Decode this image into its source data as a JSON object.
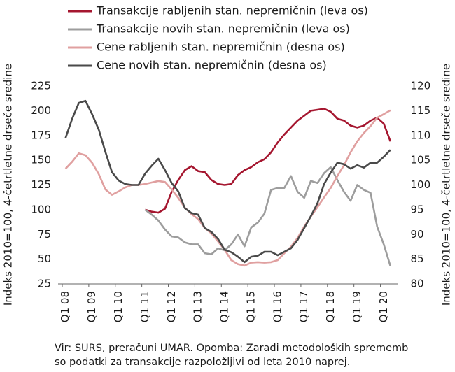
{
  "chart_data": {
    "type": "line",
    "categories": [
      "Q1 08",
      null,
      null,
      null,
      "Q1 09",
      null,
      null,
      null,
      "Q1 10",
      null,
      null,
      null,
      "Q1 11",
      null,
      null,
      null,
      "Q1 12",
      null,
      null,
      null,
      "Q1 13",
      null,
      null,
      null,
      "Q1 14",
      null,
      null,
      null,
      "Q1 15",
      null,
      null,
      null,
      "Q1 16",
      null,
      null,
      null,
      "Q1 17",
      null,
      null,
      null,
      "Q1 18",
      null,
      null,
      null,
      "Q1 19",
      null,
      null,
      null,
      "Q1 20",
      null
    ],
    "ylabel": "Indeks 2010=100, 4-četrtletne drseče sredine",
    "y2label": "Indeks 2010=100, 4-četrtletne drseče sredine",
    "ylim": [
      25,
      225
    ],
    "yticks": [
      25,
      50,
      75,
      100,
      125,
      150,
      175,
      200,
      225
    ],
    "y2lim": [
      80,
      120
    ],
    "y2ticks": [
      80,
      85,
      90,
      95,
      100,
      105,
      110,
      115,
      120
    ],
    "legend": "top",
    "series": [
      {
        "name": "Transakcije rabljenih stan. nepremičnin (leva os)",
        "color": "#a5162f",
        "axis": "y",
        "values": [
          null,
          null,
          null,
          null,
          null,
          null,
          null,
          null,
          null,
          null,
          null,
          null,
          100,
          98,
          97,
          101,
          118,
          130,
          140,
          144,
          139,
          138,
          130,
          126,
          125,
          126,
          135,
          140,
          143,
          148,
          151,
          158,
          168,
          176,
          183,
          190,
          195,
          200,
          201,
          202,
          199,
          192,
          190,
          185,
          183,
          185,
          190,
          193,
          187,
          169
        ]
      },
      {
        "name": "Transakcije novih stan. nepremičnin (leva os)",
        "color": "#9d9d9d",
        "axis": "y",
        "values": [
          null,
          null,
          null,
          null,
          null,
          null,
          null,
          null,
          null,
          null,
          null,
          null,
          100,
          95,
          89,
          80,
          73,
          72,
          67,
          65,
          65,
          56,
          55,
          61,
          59,
          65,
          75,
          63,
          82,
          87,
          96,
          120,
          122,
          122,
          134,
          118,
          112,
          129,
          127,
          137,
          143,
          130,
          118,
          109,
          125,
          120,
          117,
          83,
          65,
          43
        ]
      },
      {
        "name": "Cene rabljenih stan. nepremičnin (desna os)",
        "color": "#e0a0a0",
        "axis": "y2",
        "values": [
          103.3,
          104.7,
          106.4,
          106,
          104.5,
          102.2,
          99.1,
          98,
          98.7,
          99.5,
          100,
          100,
          100.2,
          100.5,
          100.8,
          100.6,
          99.1,
          97.4,
          95.4,
          94.1,
          93.1,
          91.3,
          90.2,
          88.6,
          86.9,
          84.8,
          84,
          83.7,
          84.3,
          84.4,
          84.3,
          84.4,
          84.8,
          86.2,
          87.5,
          89.3,
          91.6,
          93.6,
          95.5,
          97.5,
          99.4,
          101.8,
          104,
          106.6,
          108.8,
          110.5,
          111.9,
          113.6,
          114.3,
          115.1
        ]
      },
      {
        "name": "Cene novih stan. nepremičnin (desna os)",
        "color": "#4a4a4a",
        "axis": "y2",
        "values": [
          109.5,
          113.4,
          116.6,
          117,
          114.3,
          111.2,
          106.7,
          102.6,
          100.9,
          100.2,
          100,
          100,
          102.3,
          103.9,
          105.3,
          103,
          100.4,
          98.7,
          95.3,
          94.3,
          94,
          91.3,
          90.5,
          89.1,
          86.9,
          86.4,
          85.5,
          84.4,
          85.5,
          85.7,
          86.5,
          86.5,
          85.8,
          86.5,
          87.2,
          88.9,
          91.3,
          93.7,
          96.3,
          100.2,
          102.5,
          104.5,
          104.2,
          103.3,
          104,
          103.5,
          104.5,
          104.5,
          105.7,
          107.1
        ]
      }
    ],
    "footnote": [
      "Vir: SURS, preračuni UMAR. Opomba: Zaradi metodoloških sprememb",
      "so podatki za transakcije razpoložljivi od leta 2010 naprej."
    ]
  }
}
